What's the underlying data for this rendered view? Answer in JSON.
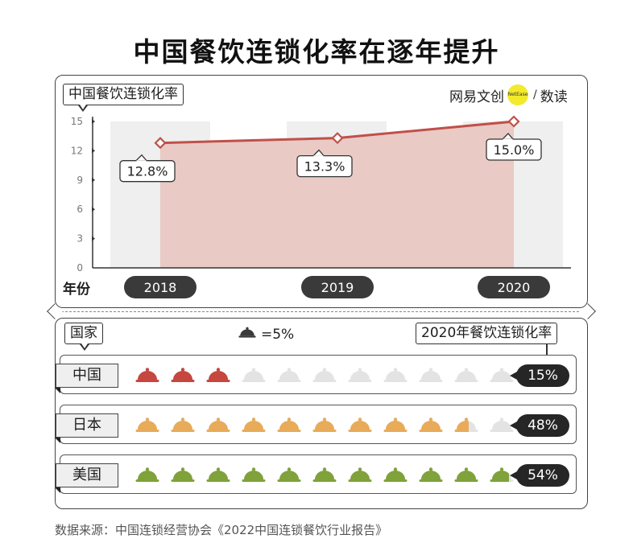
{
  "title": "中国餐饮连锁化率在逐年提升",
  "brand": {
    "left": "网易文创",
    "circle": "NetEase",
    "slash": "/",
    "right": "数读"
  },
  "chart_data": {
    "type": "line",
    "title": "中国餐饮连锁化率在逐年提升",
    "ylabel": "中国餐饮连锁化率",
    "xlabel": "年份",
    "categories": [
      "2018",
      "2019",
      "2020"
    ],
    "values": [
      12.8,
      13.3,
      15.0
    ],
    "data_labels": [
      "12.8%",
      "13.3%",
      "15.0%"
    ],
    "yticks": [
      "0",
      "3",
      "6",
      "9",
      "12",
      "15"
    ],
    "ylim": [
      0,
      15
    ],
    "colors": {
      "line": "#c0504a",
      "area": "#e8c7c2",
      "column": "#efefef"
    }
  },
  "pictograph": {
    "column_label": "国家",
    "rate_label": "2020年餐饮连锁化率",
    "legend_value": "=5%",
    "legend_icon": "cloche-icon",
    "unit_percent": 5,
    "icons_per_row": 11,
    "empty_color": "#e3e3e3",
    "rows": [
      {
        "country": "中国",
        "rate": "15%",
        "value": 15,
        "color": "#c5473f"
      },
      {
        "country": "日本",
        "rate": "48%",
        "value": 48,
        "color": "#e8ab59"
      },
      {
        "country": "美国",
        "rate": "54%",
        "value": 54,
        "color": "#7fa23a"
      }
    ]
  },
  "source": "数据来源：中国连锁经营协会《2022中国连锁餐饮行业报告》"
}
